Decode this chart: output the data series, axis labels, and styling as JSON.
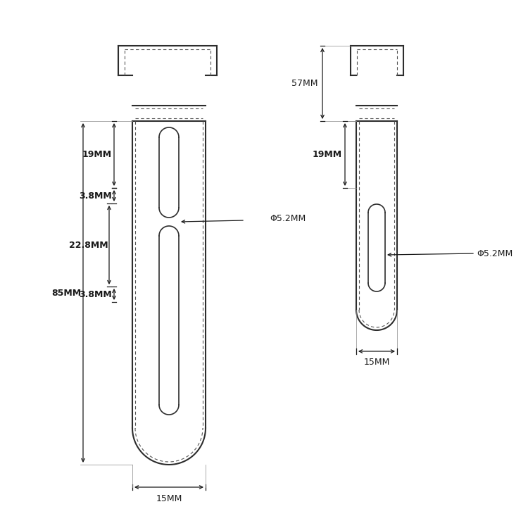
{
  "bg_color": "#ffffff",
  "line_color": "#2d2d2d",
  "line_width": 1.5,
  "dashed_lw": 0.8,
  "dim_color": "#1a1a1a",
  "annotations": {
    "dim_85mm": "85MM",
    "dim_19mm_left": "19MM",
    "dim_38mm_top": "3.8MM",
    "dim_228mm": "22.8MM",
    "dim_38mm_bot": "3.8MM",
    "dim_15mm_bot": "15MM",
    "dim_phi52_left": "Φ5.2MM",
    "dim_57mm": "57MM",
    "dim_19mm_right": "19MM",
    "dim_15mm_right": "15MM",
    "dim_phi52_right": "Φ5.2MM"
  }
}
